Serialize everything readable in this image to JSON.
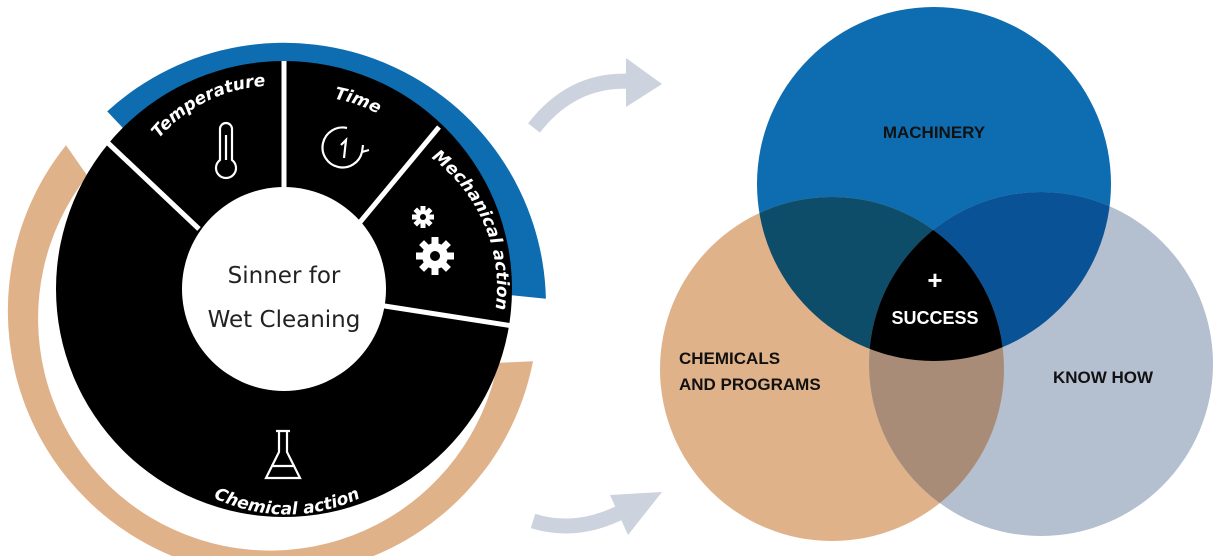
{
  "wheel": {
    "center_line1": "Sinner for",
    "center_line2": "Wet Cleaning",
    "segments": [
      {
        "label": "Temperature",
        "icon": "thermometer-icon"
      },
      {
        "label": "Time",
        "icon": "clock-icon"
      },
      {
        "label": "Mechanical action",
        "icon": "gears-icon"
      },
      {
        "label": "Chemical action",
        "icon": "flask-icon"
      }
    ]
  },
  "venn": {
    "circles": [
      {
        "label": "MACHINERY",
        "color": "#0e6db0"
      },
      {
        "label_line1": "CHEMICALS",
        "label_line2": "AND PROGRAMS",
        "color": "#e0b28a"
      },
      {
        "label": "KNOW HOW",
        "color": "#b4bfcf"
      }
    ],
    "center_symbol": "+",
    "center_label": "SUCCESS"
  },
  "colors": {
    "wheel_black": "#000000",
    "arc_blue": "#0e6db0",
    "arc_tan": "#e0b28a",
    "arrow": "#ccd3de"
  }
}
